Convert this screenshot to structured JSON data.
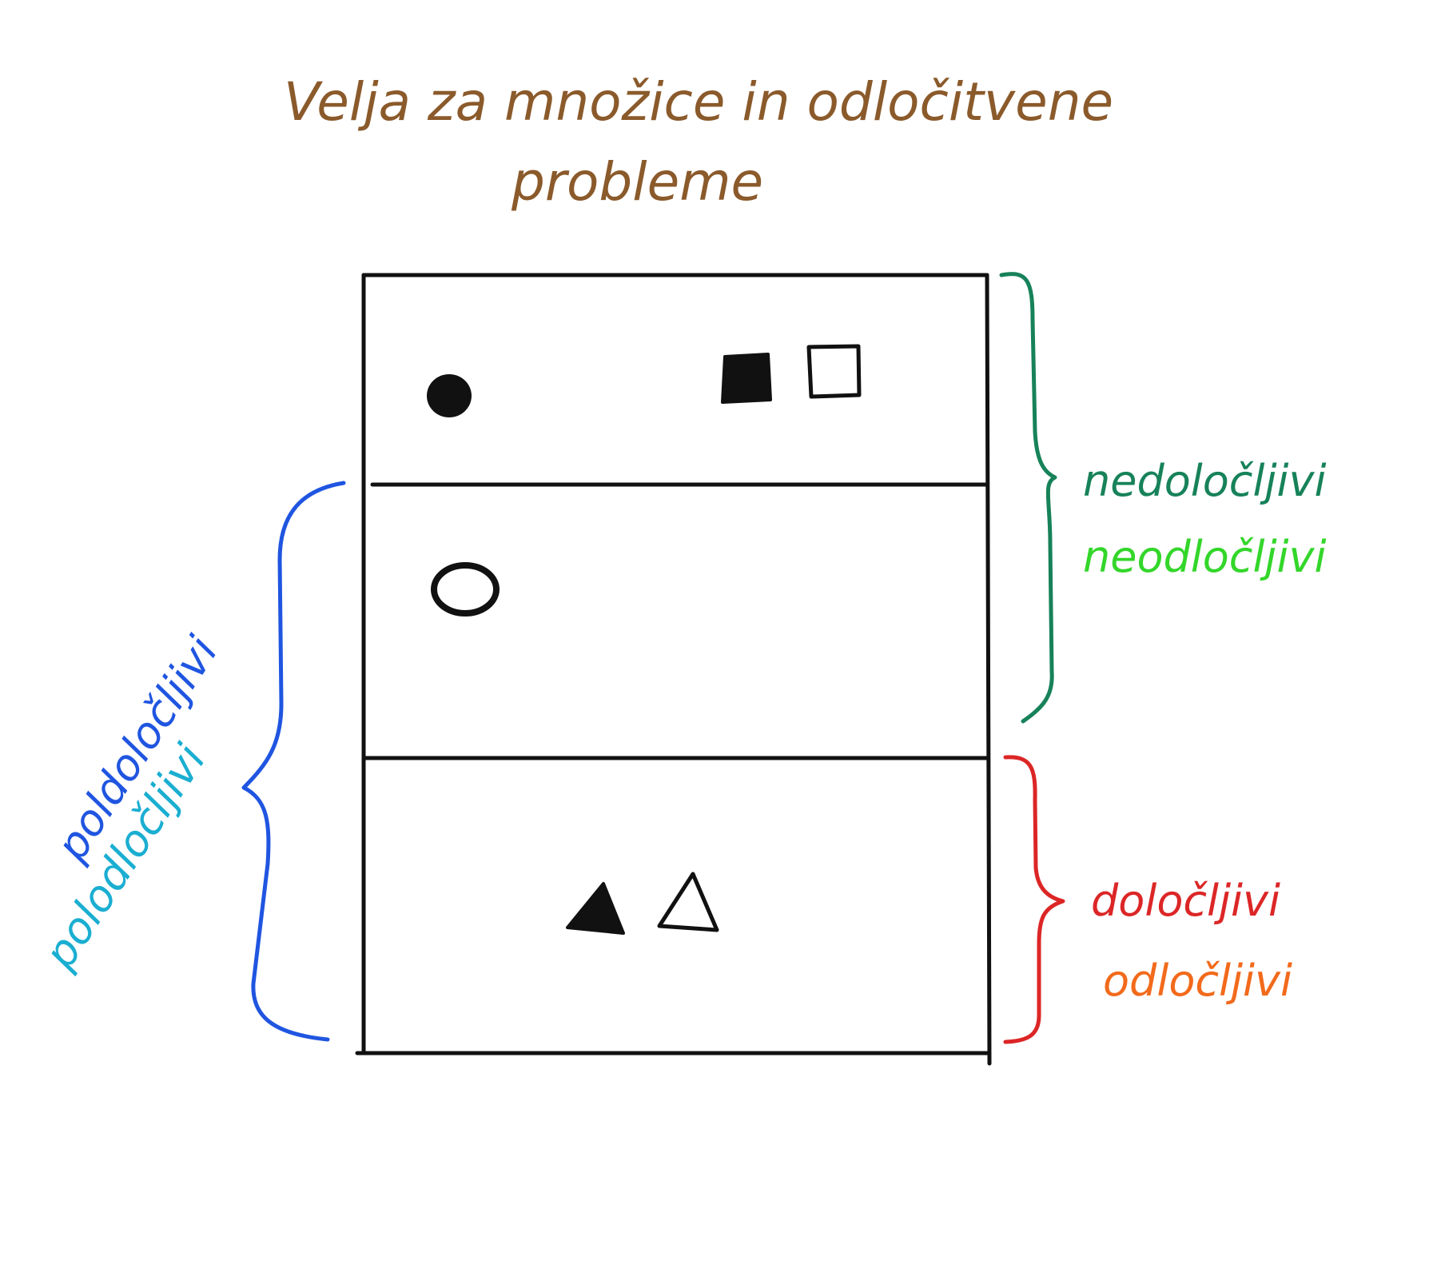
{
  "title": {
    "line1": "Velja za množice in odločitvene",
    "line2": "probleme"
  },
  "labels": {
    "right_top": {
      "primary": "nedoločljivi",
      "secondary": "neodločljivi"
    },
    "right_bottom": {
      "primary": "določljivi",
      "secondary": "odločljivi"
    },
    "left": {
      "primary": "poldoločljivi",
      "secondary": "polodločljivi"
    }
  },
  "colors": {
    "title": "#8B5A2B",
    "brace_right_top": "#17825A",
    "label_right_top_primary": "#17825A",
    "label_right_top_secondary": "#33D62A",
    "brace_right_bottom": "#DC2626",
    "label_right_bottom_primary": "#DC2626",
    "label_right_bottom_secondary": "#F26A1B",
    "brace_left": "#1F55E0",
    "label_left_primary": "#1F55E0",
    "label_left_secondary": "#1AAED1",
    "shapes": "#111111"
  },
  "regions": [
    {
      "name": "top",
      "symbols": [
        "filled-circle",
        "filled-square",
        "hollow-square"
      ]
    },
    {
      "name": "middle",
      "symbols": [
        "hollow-circle"
      ]
    },
    {
      "name": "bottom",
      "symbols": [
        "filled-triangle",
        "hollow-triangle"
      ]
    }
  ]
}
